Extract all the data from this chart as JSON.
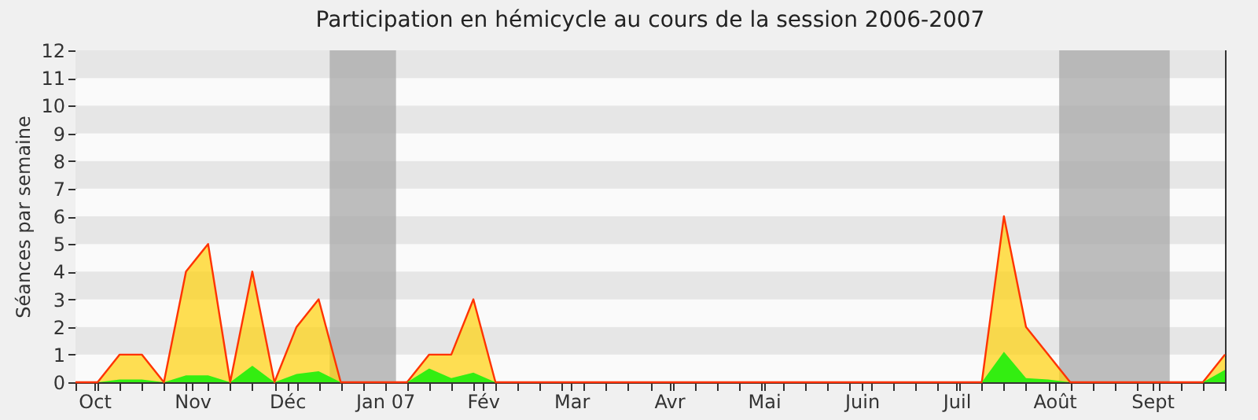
{
  "chart_data": {
    "type": "area",
    "title": "Participation en hémicycle au cours de la session 2006-2007",
    "ylabel": "Séances par semaine",
    "x": [
      "2006-09-25",
      "2006-10-02",
      "2006-10-09",
      "2006-10-16",
      "2006-10-23",
      "2006-10-30",
      "2006-11-06",
      "2006-11-13",
      "2006-11-20",
      "2006-11-27",
      "2006-12-04",
      "2006-12-11",
      "2006-12-18",
      "2006-12-25",
      "2007-01-01",
      "2007-01-08",
      "2007-01-15",
      "2007-01-22",
      "2007-01-29",
      "2007-02-05",
      "2007-02-12",
      "2007-02-19",
      "2007-02-26",
      "2007-03-05",
      "2007-03-12",
      "2007-03-19",
      "2007-03-26",
      "2007-04-02",
      "2007-04-09",
      "2007-04-16",
      "2007-04-23",
      "2007-04-30",
      "2007-05-07",
      "2007-05-14",
      "2007-05-21",
      "2007-05-28",
      "2007-06-04",
      "2007-06-11",
      "2007-06-18",
      "2007-06-25",
      "2007-07-02",
      "2007-07-09",
      "2007-07-16",
      "2007-07-23",
      "2007-07-30",
      "2007-08-06",
      "2007-08-13",
      "2007-08-20",
      "2007-08-27",
      "2007-09-03",
      "2007-09-10",
      "2007-09-17",
      "2007-09-24"
    ],
    "series": [
      {
        "color": "#ffd20a",
        "values": [
          0,
          0,
          1,
          1,
          0,
          4,
          5,
          0,
          4,
          0,
          2,
          3,
          0,
          0,
          0,
          0,
          1,
          1,
          3,
          0,
          0,
          0,
          0,
          0,
          0,
          0,
          0,
          0,
          0,
          0,
          0,
          0,
          0,
          0,
          0,
          0,
          0,
          0,
          0,
          0,
          0,
          0,
          6,
          2,
          1,
          0,
          0,
          0,
          0,
          0,
          0,
          0,
          1
        ]
      },
      {
        "color": "#33ee11",
        "values": [
          0,
          0,
          0.1,
          0.1,
          0,
          0.25,
          0.25,
          0,
          0.6,
          0,
          0.3,
          0.4,
          0,
          0,
          0,
          0,
          0.5,
          0.15,
          0.35,
          0,
          0,
          0,
          0,
          0,
          0,
          0,
          0,
          0,
          0,
          0,
          0,
          0,
          0,
          0,
          0,
          0,
          0,
          0,
          0,
          0,
          0,
          0,
          1.1,
          0.15,
          0.1,
          0,
          0,
          0,
          0,
          0,
          0,
          0,
          0.45
        ]
      }
    ],
    "xlim": [
      "2006-09-25",
      "2007-09-24"
    ],
    "xticks": [
      {
        "value": "2006-09-25",
        "label": null
      },
      {
        "value": "2006-10-01",
        "label": "Oct"
      },
      {
        "value": "2006-10-02",
        "label": null
      },
      {
        "value": "2006-10-09",
        "label": null
      },
      {
        "value": "2006-10-16",
        "label": null
      },
      {
        "value": "2006-10-23",
        "label": null
      },
      {
        "value": "2006-10-30",
        "label": null
      },
      {
        "value": "2006-11-01",
        "label": "Nov"
      },
      {
        "value": "2006-11-06",
        "label": null
      },
      {
        "value": "2006-11-13",
        "label": null
      },
      {
        "value": "2006-11-20",
        "label": null
      },
      {
        "value": "2006-11-27",
        "label": null
      },
      {
        "value": "2006-12-01",
        "label": "Déc"
      },
      {
        "value": "2006-12-04",
        "label": null
      },
      {
        "value": "2006-12-11",
        "label": null
      },
      {
        "value": "2006-12-18",
        "label": null
      },
      {
        "value": "2006-12-25",
        "label": null
      },
      {
        "value": "2007-01-01",
        "label": "Jan 07"
      },
      {
        "value": "2007-01-08",
        "label": null
      },
      {
        "value": "2007-01-15",
        "label": null
      },
      {
        "value": "2007-01-22",
        "label": null
      },
      {
        "value": "2007-01-29",
        "label": null
      },
      {
        "value": "2007-02-01",
        "label": "Fév"
      },
      {
        "value": "2007-02-05",
        "label": null
      },
      {
        "value": "2007-02-12",
        "label": null
      },
      {
        "value": "2007-02-19",
        "label": null
      },
      {
        "value": "2007-02-26",
        "label": null
      },
      {
        "value": "2007-03-01",
        "label": "Mar"
      },
      {
        "value": "2007-03-05",
        "label": null
      },
      {
        "value": "2007-03-12",
        "label": null
      },
      {
        "value": "2007-03-19",
        "label": null
      },
      {
        "value": "2007-03-26",
        "label": null
      },
      {
        "value": "2007-04-01",
        "label": "Avr"
      },
      {
        "value": "2007-04-02",
        "label": null
      },
      {
        "value": "2007-04-09",
        "label": null
      },
      {
        "value": "2007-04-16",
        "label": null
      },
      {
        "value": "2007-04-23",
        "label": null
      },
      {
        "value": "2007-04-30",
        "label": null
      },
      {
        "value": "2007-05-01",
        "label": "Mai"
      },
      {
        "value": "2007-05-07",
        "label": null
      },
      {
        "value": "2007-05-14",
        "label": null
      },
      {
        "value": "2007-05-21",
        "label": null
      },
      {
        "value": "2007-05-28",
        "label": null
      },
      {
        "value": "2007-06-01",
        "label": "Juin"
      },
      {
        "value": "2007-06-04",
        "label": null
      },
      {
        "value": "2007-06-11",
        "label": null
      },
      {
        "value": "2007-06-18",
        "label": null
      },
      {
        "value": "2007-06-25",
        "label": null
      },
      {
        "value": "2007-07-01",
        "label": "Juil"
      },
      {
        "value": "2007-07-02",
        "label": null
      },
      {
        "value": "2007-07-09",
        "label": null
      },
      {
        "value": "2007-07-16",
        "label": null
      },
      {
        "value": "2007-07-23",
        "label": null
      },
      {
        "value": "2007-07-30",
        "label": null
      },
      {
        "value": "2007-08-01",
        "label": "Août"
      },
      {
        "value": "2007-08-06",
        "label": null
      },
      {
        "value": "2007-08-13",
        "label": null
      },
      {
        "value": "2007-08-20",
        "label": null
      },
      {
        "value": "2007-08-27",
        "label": null
      },
      {
        "value": "2007-09-01",
        "label": "Sept"
      },
      {
        "value": "2007-09-03",
        "label": null
      },
      {
        "value": "2007-09-10",
        "label": null
      },
      {
        "value": "2007-09-17",
        "label": null
      },
      {
        "value": "2007-09-24",
        "label": null
      }
    ],
    "ylim": [
      0,
      12
    ],
    "yticks": [
      0,
      1,
      2,
      3,
      4,
      5,
      6,
      7,
      8,
      9,
      10,
      11,
      12
    ],
    "bands": [
      {
        "axis": "x",
        "from": "2006-12-14T12:00",
        "to": "2007-01-04T12:00",
        "color": "#a8a8a8"
      },
      {
        "axis": "x",
        "from": "2007-08-02T12:00",
        "to": "2007-09-06T12:00",
        "color": "#a8a8a8"
      }
    ],
    "grid": false
  }
}
